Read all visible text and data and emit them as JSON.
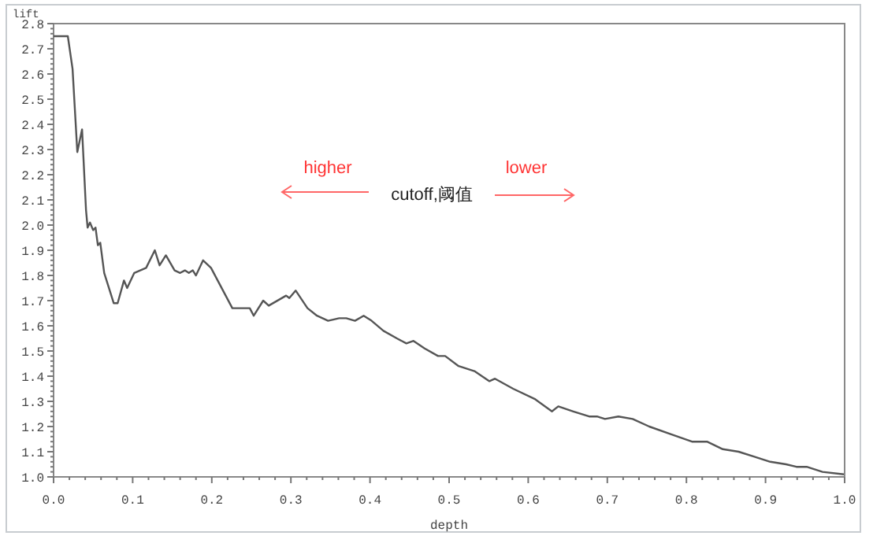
{
  "chart_data": {
    "type": "line",
    "xlabel": "depth",
    "ylabel": "lift",
    "annotations": [
      "higher",
      "cutoff,阈值",
      "lower"
    ],
    "x": [
      0,
      0.018,
      0.024,
      0.03,
      0.036,
      0.041,
      0.043,
      0.046,
      0.05,
      0.053,
      0.056,
      0.059,
      0.064,
      0.076,
      0.081,
      0.089,
      0.093,
      0.102,
      0.117,
      0.128,
      0.134,
      0.142,
      0.153,
      0.16,
      0.166,
      0.171,
      0.176,
      0.18,
      0.189,
      0.199,
      0.226,
      0.236,
      0.248,
      0.253,
      0.265,
      0.272,
      0.294,
      0.298,
      0.306,
      0.321,
      0.333,
      0.347,
      0.361,
      0.37,
      0.381,
      0.392,
      0.402,
      0.417,
      0.434,
      0.446,
      0.455,
      0.469,
      0.486,
      0.495,
      0.512,
      0.532,
      0.551,
      0.558,
      0.581,
      0.608,
      0.63,
      0.638,
      0.657,
      0.677,
      0.687,
      0.697,
      0.714,
      0.732,
      0.753,
      0.78,
      0.807,
      0.826,
      0.846,
      0.866,
      0.886,
      0.906,
      0.926,
      0.939,
      0.952,
      0.972,
      0.999
    ],
    "series": [
      {
        "color": "#555555",
        "values": [
          2.75,
          2.75,
          2.62,
          2.29,
          2.38,
          2.06,
          1.99,
          2.01,
          1.98,
          1.99,
          1.92,
          1.93,
          1.81,
          1.69,
          1.69,
          1.78,
          1.75,
          1.81,
          1.83,
          1.9,
          1.84,
          1.88,
          1.82,
          1.81,
          1.82,
          1.81,
          1.82,
          1.8,
          1.86,
          1.83,
          1.67,
          1.67,
          1.67,
          1.64,
          1.7,
          1.68,
          1.72,
          1.71,
          1.74,
          1.67,
          1.64,
          1.62,
          1.63,
          1.63,
          1.62,
          1.64,
          1.62,
          1.58,
          1.55,
          1.53,
          1.54,
          1.51,
          1.48,
          1.48,
          1.44,
          1.42,
          1.38,
          1.39,
          1.35,
          1.31,
          1.26,
          1.28,
          1.26,
          1.24,
          1.24,
          1.23,
          1.24,
          1.23,
          1.2,
          1.17,
          1.14,
          1.14,
          1.11,
          1.1,
          1.08,
          1.06,
          1.05,
          1.04,
          1.04,
          1.02,
          1.01
        ]
      }
    ],
    "xlim": [
      0,
      1
    ],
    "ylim": [
      1.0,
      2.8
    ],
    "xticks": [
      {
        "value": 0,
        "label": "0.0"
      },
      0.1,
      0.2,
      0.3,
      0.4,
      0.5,
      0.6,
      0.7,
      0.8,
      0.9,
      {
        "value": 1,
        "label": "1.0"
      }
    ],
    "yticks": [
      {
        "value": 1,
        "label": "1.0"
      },
      1.1,
      1.2,
      1.3,
      1.4,
      1.5,
      1.6,
      1.7,
      1.8,
      1.9,
      {
        "value": 2,
        "label": "2.0"
      },
      2.1,
      2.2,
      2.3,
      2.4,
      2.5,
      2.6,
      2.7,
      2.8
    ],
    "grid": false,
    "marker": "none",
    "line_style": "solid"
  }
}
